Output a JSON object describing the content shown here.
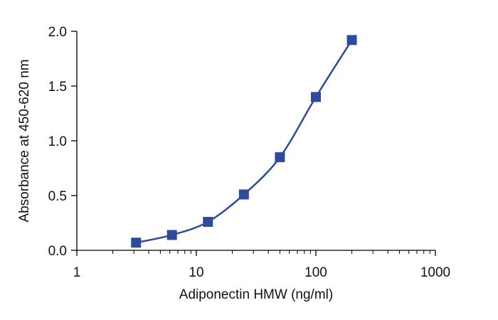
{
  "chart_data": {
    "type": "scatter",
    "title": "",
    "xlabel": "Adiponectin HMW (ng/ml)",
    "ylabel": "Absorbance at 450-620 nm",
    "x_scale": "log",
    "xlim": [
      1,
      1000
    ],
    "ylim": [
      0,
      2.0
    ],
    "x_ticks": [
      1,
      10,
      100,
      1000
    ],
    "x_tick_labels": [
      "1",
      "10",
      "100",
      "1000"
    ],
    "y_ticks": [
      0,
      0.5,
      1.0,
      1.5,
      2.0
    ],
    "y_tick_labels": [
      "0.0",
      "0.5",
      "1.0",
      "1.5",
      "2.0"
    ],
    "grid": false,
    "marker": "square",
    "color": "#2e4a9c",
    "fit_line": true,
    "x": [
      3.13,
      6.25,
      12.5,
      25,
      50,
      100,
      200
    ],
    "y": [
      0.07,
      0.14,
      0.26,
      0.51,
      0.85,
      1.4,
      1.92
    ]
  }
}
